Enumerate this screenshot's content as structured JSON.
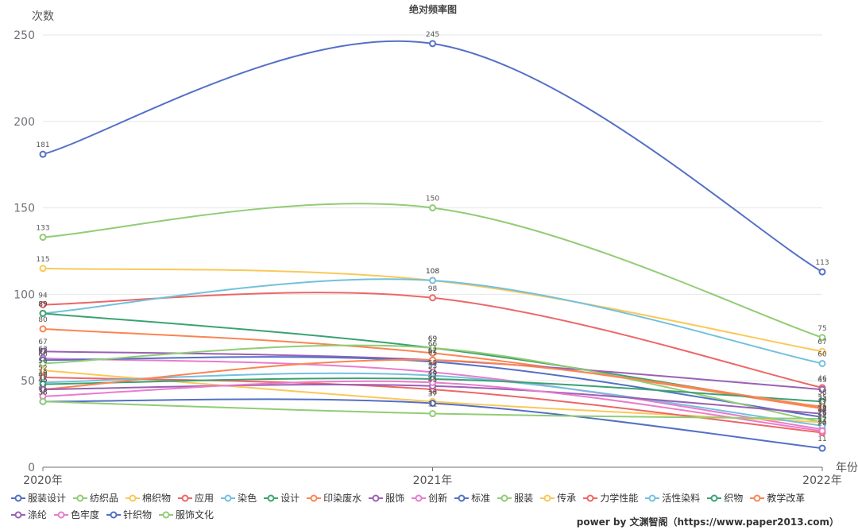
{
  "watermark": "power by 文渊智阁（https://www.paper2013.com）",
  "chart_data": {
    "type": "line",
    "title": "绝对频率图",
    "xlabel": "年份",
    "ylabel": "次数",
    "x": [
      "2020年",
      "2021年",
      "2022年"
    ],
    "ylim": [
      0,
      250
    ],
    "yticks": [
      0,
      50,
      100,
      150,
      200,
      250
    ],
    "grid": true,
    "smooth": true,
    "legend_position": "bottom-left",
    "series": [
      {
        "name": "服装设计",
        "color": "#5470c6",
        "values": [
          181,
          245,
          113
        ]
      },
      {
        "name": "纺织品",
        "color": "#91cc75",
        "values": [
          133,
          150,
          75
        ]
      },
      {
        "name": "棉织物",
        "color": "#fac858",
        "values": [
          115,
          108,
          67
        ]
      },
      {
        "name": "应用",
        "color": "#ee6666",
        "values": [
          94,
          98,
          46
        ]
      },
      {
        "name": "染色",
        "color": "#73c0de",
        "values": [
          89,
          108,
          60
        ]
      },
      {
        "name": "设计",
        "color": "#3ba272",
        "values": [
          89,
          69,
          34
        ]
      },
      {
        "name": "印染废水",
        "color": "#fc8452",
        "values": [
          80,
          66,
          34
        ]
      },
      {
        "name": "服饰",
        "color": "#9a60b4",
        "values": [
          67,
          62,
          45
        ]
      },
      {
        "name": "创新",
        "color": "#ea7ccc",
        "values": [
          63,
          55,
          22
        ]
      },
      {
        "name": "标准",
        "color": "#5470c6",
        "values": [
          62,
          61,
          29
        ]
      },
      {
        "name": "服装",
        "color": "#91cc75",
        "values": [
          60,
          69,
          26
        ]
      },
      {
        "name": "传承",
        "color": "#fac858",
        "values": [
          56,
          38,
          26
        ]
      },
      {
        "name": "力学性能",
        "color": "#ee6666",
        "values": [
          52,
          45,
          20
        ]
      },
      {
        "name": "活性染料",
        "color": "#73c0de",
        "values": [
          49,
          53,
          24
        ]
      },
      {
        "name": "织物",
        "color": "#3ba272",
        "values": [
          48,
          51,
          38
        ]
      },
      {
        "name": "教学改革",
        "color": "#fc8452",
        "values": [
          45,
          62,
          35
        ]
      },
      {
        "name": "涤纶",
        "color": "#9a60b4",
        "values": [
          45,
          47,
          31
        ]
      },
      {
        "name": "色牢度",
        "color": "#ea7ccc",
        "values": [
          41,
          49,
          21
        ]
      },
      {
        "name": "针织物",
        "color": "#5470c6",
        "values": [
          38,
          37,
          11
        ]
      },
      {
        "name": "服饰文化",
        "color": "#91cc75",
        "values": [
          38,
          31,
          28
        ]
      }
    ]
  }
}
